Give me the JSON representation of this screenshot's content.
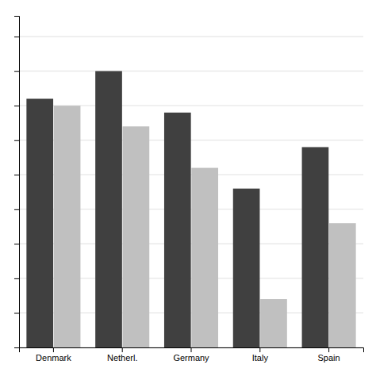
{
  "chart_data": {
    "type": "bar",
    "categories": [
      "Denmark",
      "Netherl.",
      "Germany",
      "Italy",
      "Spain"
    ],
    "series": [
      {
        "color": "#404040",
        "values": [
          76,
          80,
          74,
          63,
          69
        ]
      },
      {
        "color": "#c0c0c0",
        "values": [
          75,
          72,
          66,
          47,
          58
        ]
      }
    ],
    "ylim": [
      40,
      88
    ],
    "yticks": [
      40,
      45,
      50,
      55,
      60,
      65,
      70,
      75,
      80,
      85
    ],
    "grid": true,
    "tick_labels": "x"
  }
}
